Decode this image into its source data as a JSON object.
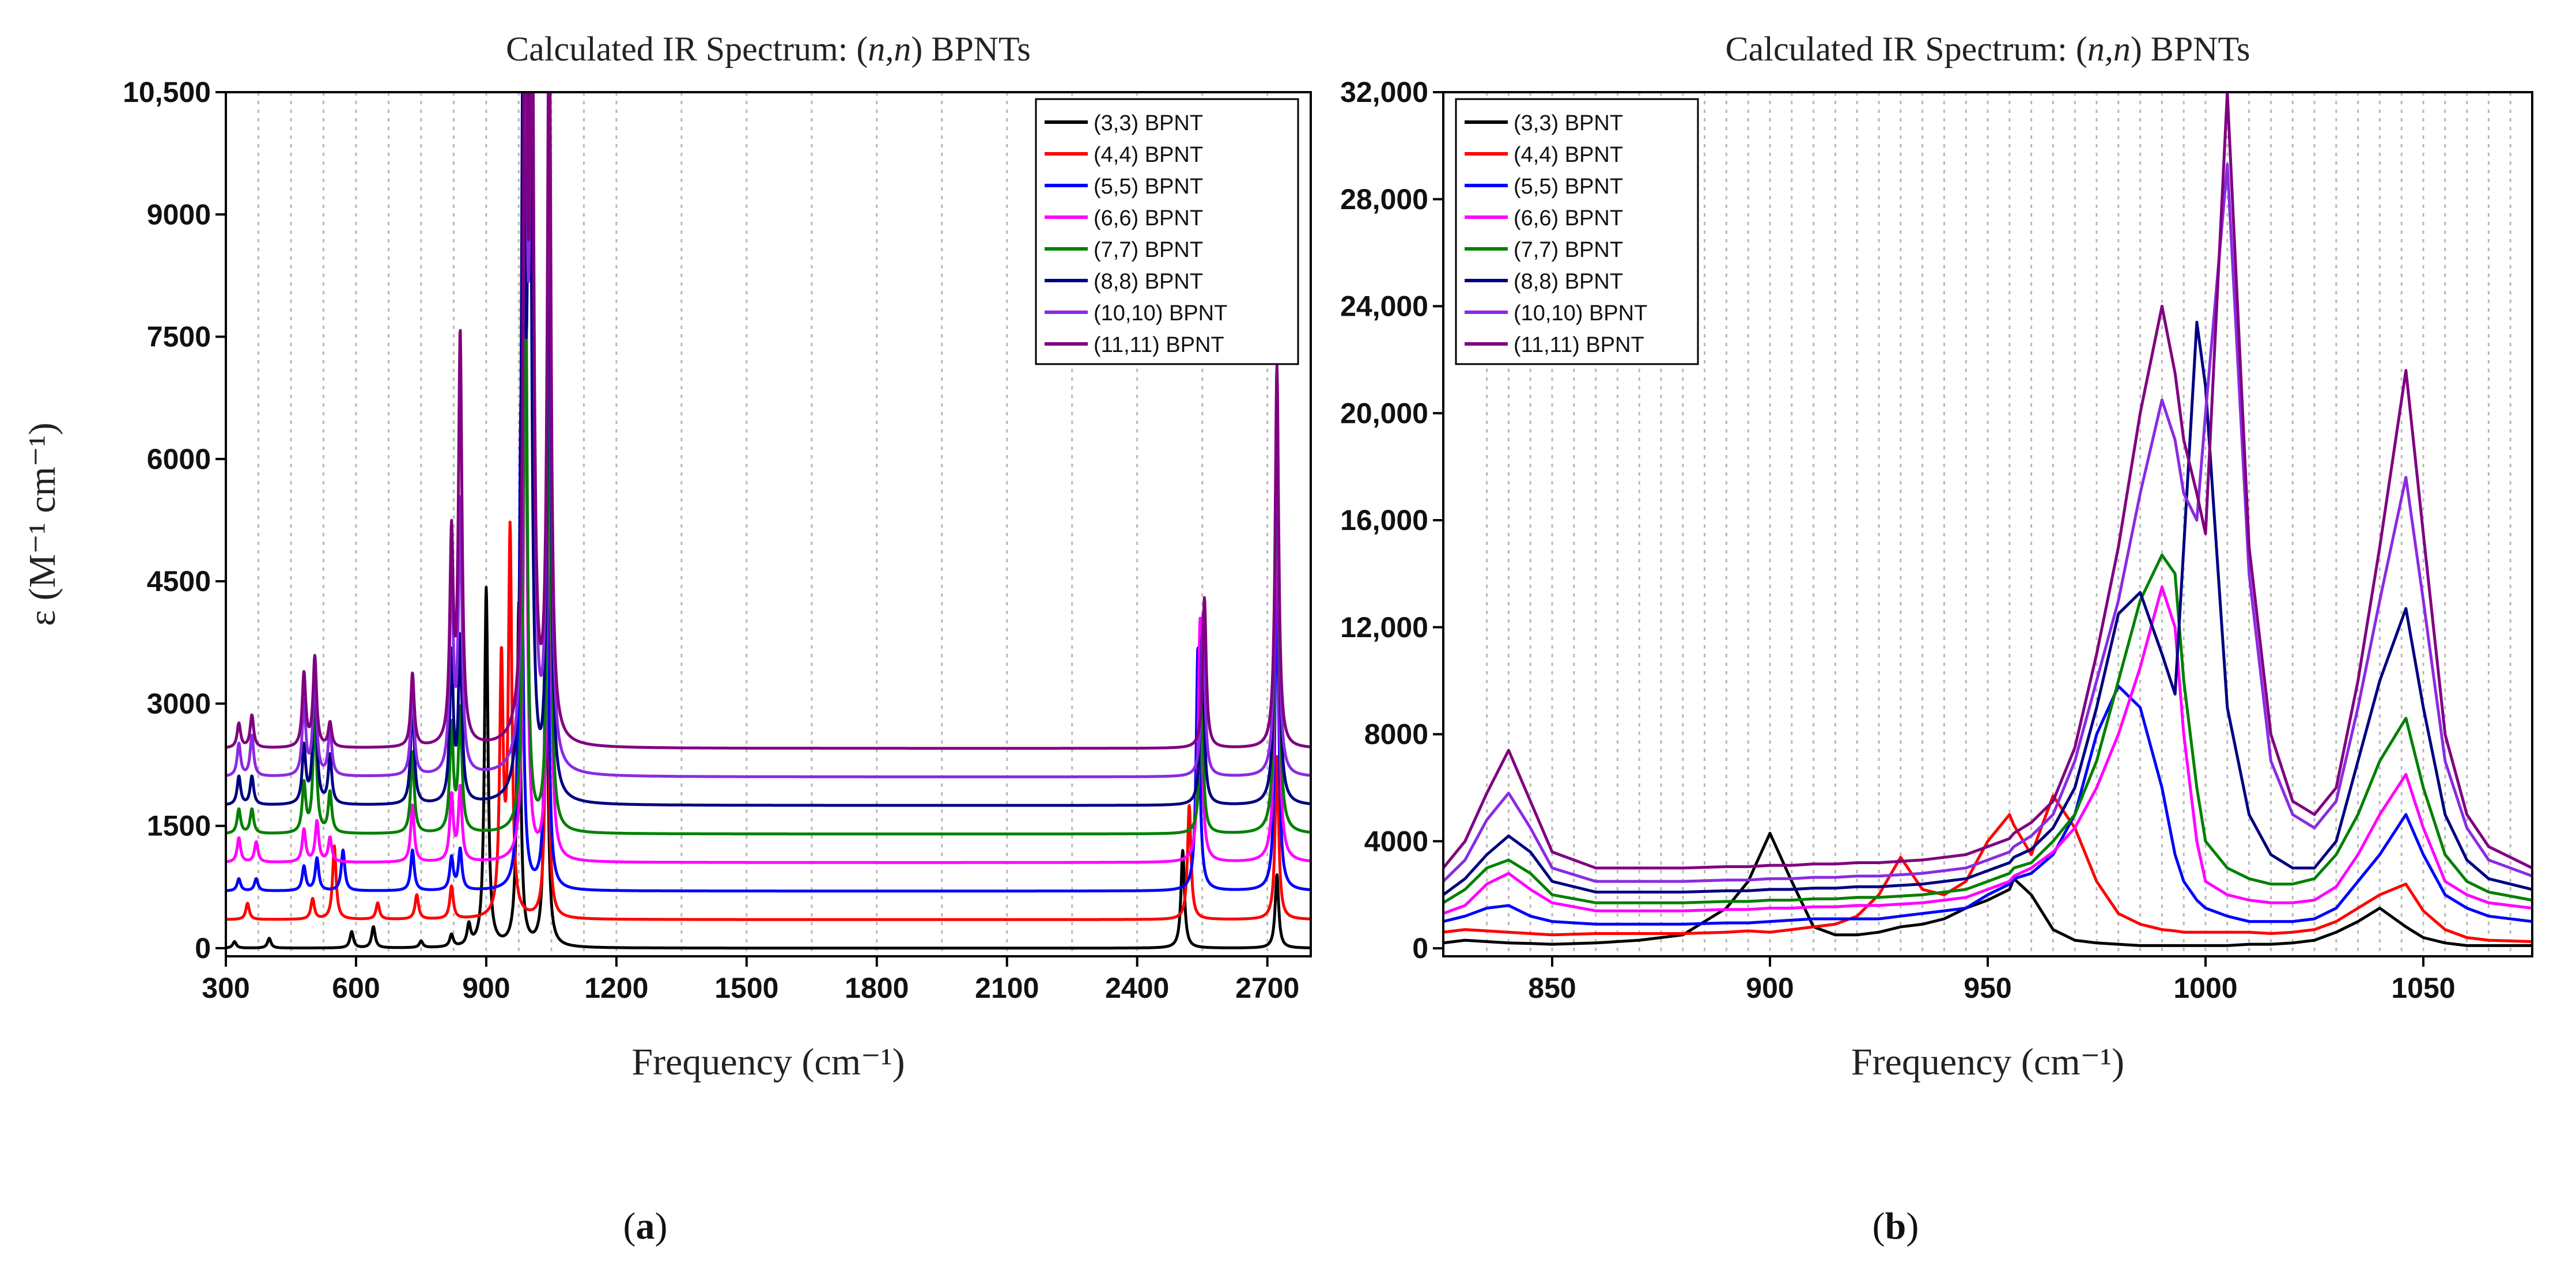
{
  "figure_captions": {
    "a": "a",
    "b": "b"
  },
  "chart_data": [
    {
      "id": "a",
      "type": "line",
      "title": {
        "prefix": "Calculated IR Spectrum: (",
        "italic": "n,n",
        "suffix": ") BPNTs"
      },
      "xlabel": "Frequency (cm⁻¹)",
      "ylabel": "ε (M⁻¹ cm⁻¹)",
      "xlim": [
        300,
        2800
      ],
      "ylim": [
        -100,
        10500
      ],
      "xticks": [
        300,
        600,
        900,
        1200,
        1500,
        1800,
        2100,
        2400,
        2700
      ],
      "xtick_labels": [
        "300",
        "600",
        "900",
        "1200",
        "1500",
        "1800",
        "2100",
        "2400",
        "2700"
      ],
      "yticks": [
        0,
        1500,
        3000,
        4500,
        6000,
        7500,
        9000,
        10500
      ],
      "ytick_labels": [
        "0",
        "1500",
        "3000",
        "4500",
        "6000",
        "7500",
        "9000",
        "10,500"
      ],
      "gridlines_x": [
        375,
        450,
        525,
        675,
        750,
        825,
        975,
        1050,
        1125,
        1350,
        1650,
        1950,
        2250,
        2550
      ],
      "legend_position": "top-right",
      "series": [
        {
          "name": "(3,3) BPNT",
          "color": "#000000",
          "baseline": 0,
          "peaks": [
            [
              320,
              80
            ],
            [
              400,
              120
            ],
            [
              590,
              200
            ],
            [
              640,
              260
            ],
            [
              750,
              80
            ],
            [
              820,
              150
            ],
            [
              860,
              250
            ],
            [
              900,
              4400
            ],
            [
              975,
              4200
            ],
            [
              1038,
              4000
            ],
            [
              2505,
              1200
            ],
            [
              2722,
              900
            ]
          ]
        },
        {
          "name": "(4,4) BPNT",
          "color": "#ff0000",
          "baseline": 350,
          "peaks": [
            [
              350,
              200
            ],
            [
              500,
              250
            ],
            [
              550,
              900
            ],
            [
              650,
              200
            ],
            [
              740,
              300
            ],
            [
              820,
              400
            ],
            [
              935,
              3100
            ],
            [
              955,
              4700
            ],
            [
              1040,
              3500
            ],
            [
              2520,
              1400
            ],
            [
              2722,
              2000
            ]
          ]
        },
        {
          "name": "(5,5) BPNT",
          "color": "#0000ff",
          "baseline": 700,
          "peaks": [
            [
              330,
              150
            ],
            [
              370,
              150
            ],
            [
              480,
              300
            ],
            [
              510,
              400
            ],
            [
              570,
              500
            ],
            [
              730,
              500
            ],
            [
              820,
              400
            ],
            [
              840,
              500
            ],
            [
              980,
              6000
            ],
            [
              1040,
              4500
            ],
            [
              2540,
              3000
            ],
            [
              2722,
              4000
            ]
          ]
        },
        {
          "name": "(6,6) BPNT",
          "color": "#ff00ff",
          "baseline": 1050,
          "peaks": [
            [
              330,
              300
            ],
            [
              370,
              250
            ],
            [
              480,
              400
            ],
            [
              510,
              500
            ],
            [
              540,
              300
            ],
            [
              730,
              700
            ],
            [
              820,
              800
            ],
            [
              840,
              900
            ],
            [
              990,
              7000
            ],
            [
              1045,
              5500
            ],
            [
              2545,
              3000
            ],
            [
              2722,
              5000
            ]
          ]
        },
        {
          "name": "(7,7) BPNT",
          "color": "#008000",
          "baseline": 1400,
          "peaks": [
            [
              330,
              300
            ],
            [
              360,
              300
            ],
            [
              480,
              600
            ],
            [
              505,
              1500
            ],
            [
              540,
              500
            ],
            [
              730,
              1000
            ],
            [
              820,
              1300
            ],
            [
              840,
              1500
            ],
            [
              990,
              8000
            ],
            [
              1045,
              6000
            ],
            [
              2548,
              1800
            ],
            [
              2722,
              5500
            ]
          ]
        },
        {
          "name": "(8,8) BPNT",
          "color": "#000080",
          "baseline": 1750,
          "peaks": [
            [
              330,
              350
            ],
            [
              360,
              350
            ],
            [
              480,
              700
            ],
            [
              505,
              1700
            ],
            [
              540,
              600
            ],
            [
              730,
              1300
            ],
            [
              820,
              1800
            ],
            [
              840,
              2000
            ],
            [
              985,
              9000
            ],
            [
              1000,
              10500
            ],
            [
              1045,
              8000
            ],
            [
              2550,
              2100
            ],
            [
              2722,
              5300
            ]
          ]
        },
        {
          "name": "(10,10) BPNT",
          "color": "#8a2be2",
          "baseline": 2100,
          "peaks": [
            [
              330,
              400
            ],
            [
              360,
              500
            ],
            [
              480,
              900
            ],
            [
              505,
              1300
            ],
            [
              540,
              600
            ],
            [
              730,
              1100
            ],
            [
              820,
              2500
            ],
            [
              840,
              3300
            ],
            [
              990,
              10000
            ],
            [
              1005,
              10500
            ],
            [
              1045,
              9000
            ],
            [
              2552,
              2000
            ],
            [
              2722,
              4800
            ]
          ]
        },
        {
          "name": "(11,11) BPNT",
          "color": "#800080",
          "baseline": 2450,
          "peaks": [
            [
              330,
              300
            ],
            [
              360,
              400
            ],
            [
              480,
              900
            ],
            [
              505,
              1100
            ],
            [
              540,
              300
            ],
            [
              730,
              900
            ],
            [
              820,
              2500
            ],
            [
              840,
              5000
            ],
            [
              990,
              10500
            ],
            [
              1005,
              10500
            ],
            [
              1045,
              9500
            ],
            [
              2555,
              1850
            ],
            [
              2722,
              4700
            ]
          ]
        }
      ]
    },
    {
      "id": "b",
      "type": "line",
      "title": {
        "prefix": "Calculated IR Spectrum: (",
        "italic": "n,n",
        "suffix": ") BPNTs"
      },
      "xlabel": "Frequency (cm⁻¹)",
      "ylabel": "",
      "xlim": [
        825,
        1075
      ],
      "ylim": [
        -300,
        32000
      ],
      "xticks": [
        850,
        900,
        950,
        1000,
        1050
      ],
      "xtick_labels": [
        "850",
        "900",
        "950",
        "1000",
        "1050"
      ],
      "yticks": [
        0,
        4000,
        8000,
        12000,
        16000,
        20000,
        24000,
        28000,
        32000
      ],
      "ytick_labels": [
        "0",
        "4000",
        "8000",
        "12,000",
        "16,000",
        "20,000",
        "24,000",
        "28,000",
        "32,000"
      ],
      "gridlines_x": [
        835,
        840,
        845,
        855,
        860,
        865,
        870,
        875,
        880,
        885,
        890,
        895,
        905,
        910,
        915,
        920,
        925,
        930,
        935,
        940,
        945,
        955,
        960,
        965,
        970,
        975,
        980,
        985,
        990,
        995,
        1005,
        1010,
        1015,
        1020,
        1025,
        1030,
        1035,
        1040,
        1045,
        1055,
        1060,
        1065,
        1070
      ],
      "legend_position": "top-left",
      "x": [
        825,
        830,
        835,
        840,
        845,
        850,
        860,
        870,
        880,
        890,
        895,
        900,
        905,
        910,
        915,
        920,
        925,
        930,
        935,
        940,
        945,
        950,
        955,
        956,
        960,
        965,
        970,
        975,
        980,
        985,
        990,
        993,
        995,
        998,
        1000,
        1005,
        1010,
        1015,
        1020,
        1025,
        1030,
        1035,
        1040,
        1046,
        1050,
        1055,
        1060,
        1065,
        1075
      ],
      "series": [
        {
          "name": "(3,3) BPNT",
          "color": "#000000",
          "values": [
            200,
            300,
            250,
            200,
            180,
            150,
            200,
            300,
            500,
            1500,
            2500,
            4300,
            2500,
            800,
            500,
            500,
            600,
            800,
            900,
            1100,
            1500,
            1800,
            2200,
            2600,
            2000,
            700,
            300,
            200,
            150,
            100,
            100,
            100,
            100,
            100,
            100,
            100,
            150,
            150,
            200,
            300,
            600,
            1000,
            1500,
            800,
            400,
            200,
            100,
            100,
            100
          ]
        },
        {
          "name": "(4,4) BPNT",
          "color": "#ff0000",
          "values": [
            600,
            700,
            650,
            600,
            550,
            500,
            550,
            550,
            550,
            600,
            650,
            600,
            700,
            800,
            900,
            1200,
            2000,
            3400,
            2200,
            2000,
            2500,
            4000,
            5000,
            4600,
            3500,
            5700,
            4500,
            2500,
            1300,
            900,
            700,
            650,
            600,
            600,
            600,
            600,
            600,
            550,
            600,
            700,
            1000,
            1500,
            2000,
            2400,
            1400,
            700,
            400,
            300,
            250
          ]
        },
        {
          "name": "(5,5) BPNT",
          "color": "#0000ff",
          "values": [
            1000,
            1200,
            1500,
            1600,
            1200,
            1000,
            900,
            900,
            900,
            950,
            950,
            1000,
            1050,
            1100,
            1100,
            1100,
            1100,
            1200,
            1300,
            1400,
            1500,
            2000,
            2400,
            2600,
            2800,
            3500,
            5000,
            8000,
            9800,
            9000,
            6000,
            3500,
            2500,
            1800,
            1500,
            1200,
            1000,
            1000,
            1000,
            1100,
            1500,
            2500,
            3500,
            5000,
            3500,
            2000,
            1500,
            1200,
            1000
          ]
        },
        {
          "name": "(6,6) BPNT",
          "color": "#ff00ff",
          "values": [
            1300,
            1600,
            2400,
            2800,
            2200,
            1700,
            1400,
            1400,
            1400,
            1450,
            1450,
            1500,
            1500,
            1550,
            1550,
            1600,
            1600,
            1650,
            1700,
            1800,
            1900,
            2200,
            2500,
            2700,
            3000,
            3600,
            4500,
            6000,
            8000,
            10500,
            13500,
            12000,
            8000,
            4000,
            2500,
            2000,
            1800,
            1700,
            1700,
            1800,
            2300,
            3500,
            5000,
            6500,
            4500,
            2500,
            2000,
            1700,
            1500
          ]
        },
        {
          "name": "(7,7) BPNT",
          "color": "#008000",
          "values": [
            1700,
            2200,
            3000,
            3300,
            2800,
            2000,
            1700,
            1700,
            1700,
            1750,
            1750,
            1800,
            1800,
            1850,
            1850,
            1900,
            1900,
            1950,
            2000,
            2100,
            2200,
            2500,
            2800,
            3000,
            3200,
            4000,
            5000,
            7000,
            10000,
            13000,
            14700,
            14000,
            10000,
            6000,
            4000,
            3000,
            2600,
            2400,
            2400,
            2600,
            3500,
            5000,
            7000,
            8600,
            6000,
            3500,
            2500,
            2100,
            1800
          ]
        },
        {
          "name": "(8,8) BPNT",
          "color": "#000080",
          "values": [
            2000,
            2600,
            3500,
            4200,
            3600,
            2500,
            2100,
            2100,
            2100,
            2150,
            2150,
            2200,
            2200,
            2250,
            2250,
            2300,
            2300,
            2350,
            2400,
            2500,
            2600,
            2900,
            3200,
            3400,
            3700,
            4500,
            6000,
            9000,
            12500,
            13300,
            11000,
            9500,
            15000,
            23400,
            21000,
            9000,
            5000,
            3500,
            3000,
            3000,
            4000,
            7000,
            10000,
            12700,
            9000,
            5000,
            3300,
            2600,
            2200
          ]
        },
        {
          "name": "(10,10) BPNT",
          "color": "#8a2be2",
          "values": [
            2500,
            3300,
            4800,
            5800,
            4500,
            3000,
            2500,
            2500,
            2500,
            2550,
            2550,
            2600,
            2600,
            2650,
            2650,
            2700,
            2700,
            2750,
            2800,
            2900,
            3000,
            3300,
            3600,
            3800,
            4200,
            5000,
            7000,
            10000,
            13000,
            17000,
            20500,
            19000,
            17000,
            16000,
            20000,
            29300,
            14000,
            7000,
            5000,
            4500,
            5500,
            9000,
            13000,
            17600,
            13000,
            7000,
            4500,
            3300,
            2700
          ]
        },
        {
          "name": "(11,11) BPNT",
          "color": "#800080",
          "values": [
            3000,
            4000,
            5800,
            7400,
            5500,
            3600,
            3000,
            3000,
            3000,
            3050,
            3050,
            3100,
            3100,
            3150,
            3150,
            3200,
            3200,
            3250,
            3300,
            3400,
            3500,
            3800,
            4100,
            4300,
            4700,
            5500,
            7500,
            11000,
            15000,
            20000,
            24000,
            21500,
            19000,
            17000,
            15500,
            32000,
            15000,
            8000,
            5500,
            5000,
            6000,
            10000,
            15000,
            21600,
            15500,
            8000,
            5000,
            3800,
            3000
          ]
        }
      ]
    }
  ]
}
